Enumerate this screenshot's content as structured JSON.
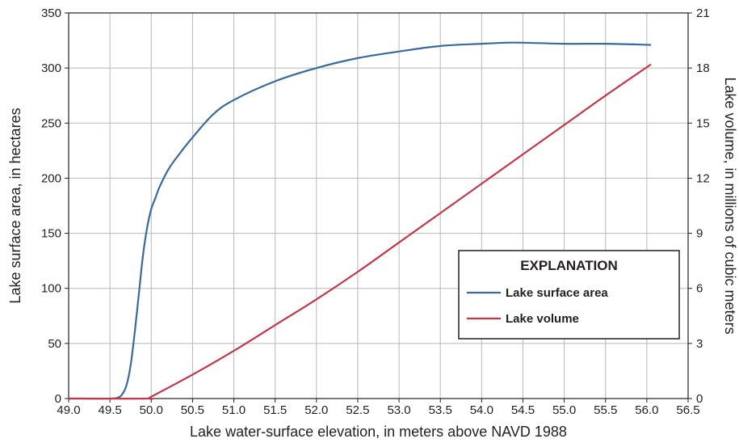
{
  "chart_data": {
    "type": "line",
    "xlabel": "Lake water-surface elevation, in meters above NAVD 1988",
    "ylabel_left": "Lake surface area, in hectares",
    "ylabel_right": "Lake volume, in millions of cubic meters",
    "xlim": [
      49.0,
      56.5
    ],
    "ylim_left": [
      0,
      350
    ],
    "ylim_right": [
      0,
      21
    ],
    "x_ticks": [
      "49.0",
      "49.5",
      "50.0",
      "50.5",
      "51.0",
      "51.5",
      "52.0",
      "52.5",
      "53.0",
      "53.5",
      "54.0",
      "54.5",
      "55.0",
      "55.5",
      "56.0",
      "56.5"
    ],
    "y_left_ticks": [
      "0",
      "50",
      "100",
      "150",
      "200",
      "250",
      "300",
      "350"
    ],
    "y_right_ticks": [
      "0",
      "3",
      "6",
      "9",
      "12",
      "15",
      "18",
      "21"
    ],
    "grid": true,
    "legend": {
      "title": "EXPLANATION",
      "placement": "lower-right",
      "entries": [
        "Lake surface area",
        "Lake volume"
      ]
    },
    "series": [
      {
        "name": "Lake surface area",
        "axis": "left",
        "color": "#3a6a9c",
        "x": [
          49.0,
          49.5,
          49.6,
          49.65,
          49.7,
          49.75,
          49.8,
          49.85,
          49.9,
          49.95,
          50.0,
          50.05,
          50.1,
          50.2,
          50.3,
          50.5,
          50.75,
          51.0,
          51.5,
          52.0,
          52.5,
          53.0,
          53.5,
          54.0,
          54.3,
          54.5,
          55.0,
          55.5,
          56.05
        ],
        "y": [
          0,
          0,
          1,
          4,
          12,
          30,
          60,
          95,
          130,
          155,
          172,
          182,
          192,
          207,
          218,
          237,
          258,
          271,
          288,
          300,
          309,
          315,
          320,
          322,
          323,
          323,
          322,
          322,
          321
        ]
      },
      {
        "name": "Lake volume",
        "axis": "right",
        "color": "#c0394a",
        "x": [
          49.0,
          49.95,
          50.0,
          50.5,
          51.0,
          51.5,
          52.0,
          52.5,
          53.0,
          53.5,
          54.0,
          54.5,
          55.0,
          55.5,
          56.05
        ],
        "y": [
          0,
          0,
          0.1,
          1.3,
          2.6,
          4.0,
          5.4,
          6.9,
          8.5,
          10.1,
          11.7,
          13.3,
          14.9,
          16.5,
          18.2
        ]
      }
    ]
  }
}
